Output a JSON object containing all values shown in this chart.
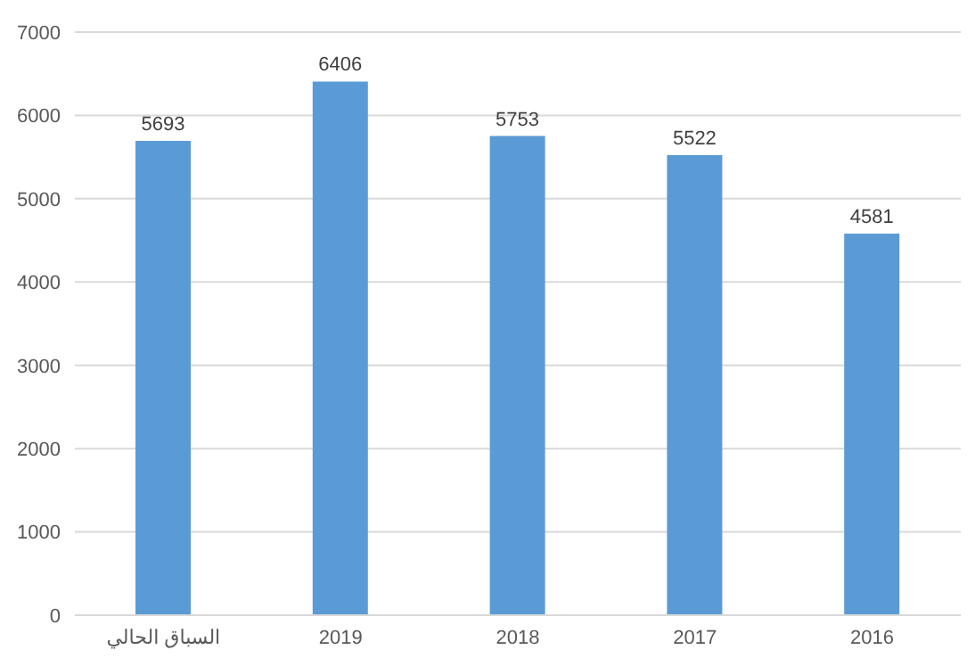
{
  "chart_data": {
    "type": "bar",
    "categories": [
      "السباق الحالي",
      "2019",
      "2018",
      "2017",
      "2016"
    ],
    "values": [
      5693,
      6406,
      5753,
      5522,
      4581
    ],
    "color": "#5b9bd5",
    "ylim": [
      0,
      7000
    ],
    "yticks": [
      0,
      1000,
      2000,
      3000,
      4000,
      5000,
      6000,
      7000
    ],
    "grid": "y",
    "data_labels": true
  }
}
